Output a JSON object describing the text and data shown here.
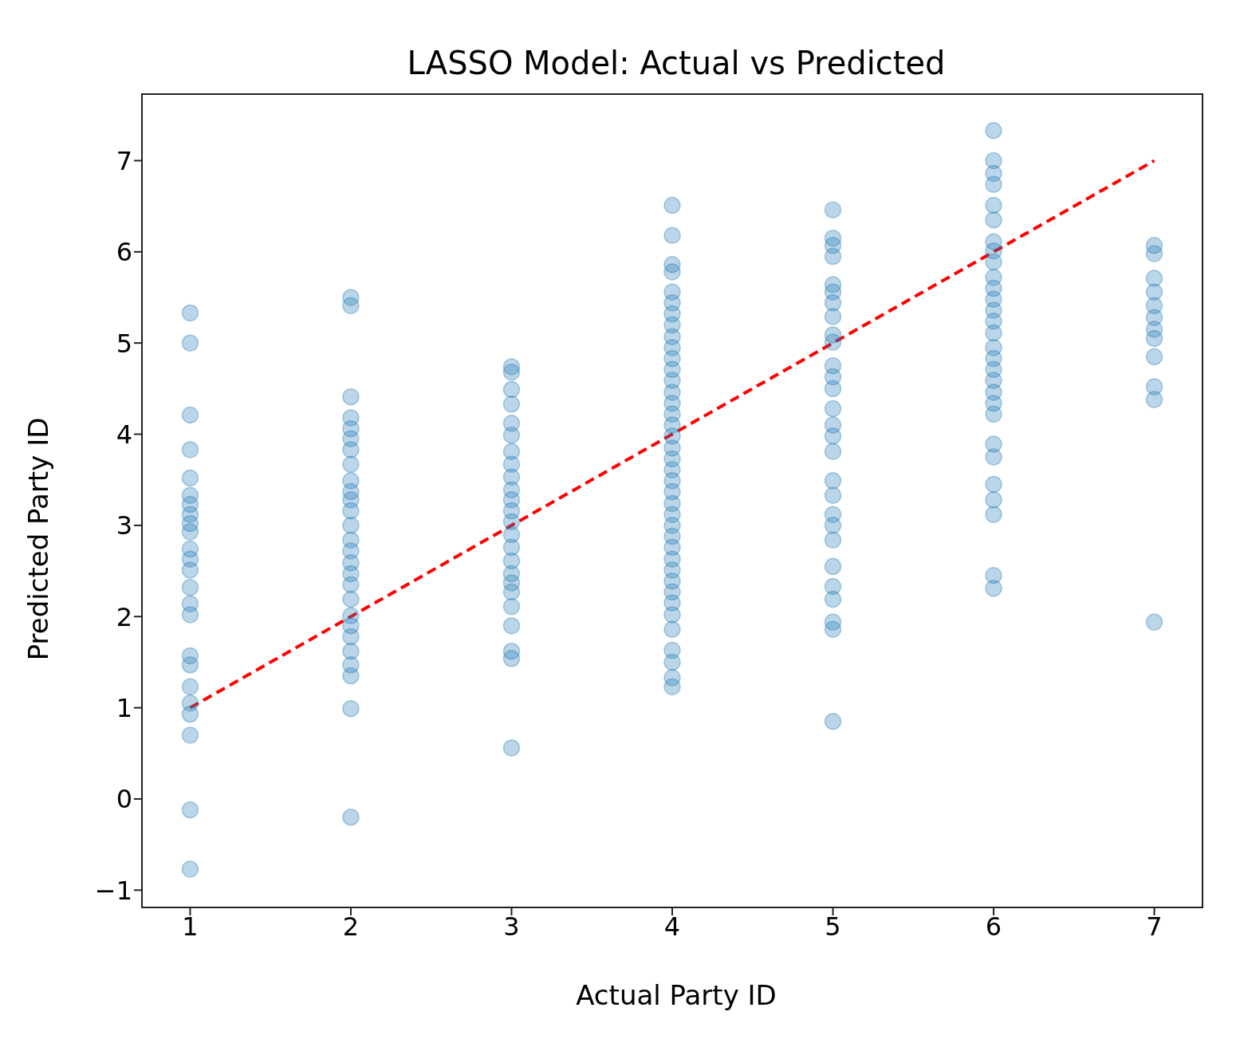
{
  "chart_data": {
    "type": "scatter",
    "title": "LASSO Model: Actual vs Predicted",
    "xlabel": "Actual Party ID",
    "ylabel": "Predicted Party ID",
    "xlim": [
      0.7,
      7.3
    ],
    "xticks": [
      1,
      2,
      3,
      4,
      5,
      6,
      7
    ],
    "ylim": [
      -1.19,
      7.73
    ],
    "yticks": [
      {
        "value": -1,
        "label": "−1"
      },
      0,
      1,
      2,
      3,
      4,
      5,
      6,
      7
    ],
    "marker": "circle",
    "series": [
      {
        "color": "#1f77b4",
        "x": [
          1,
          1,
          1,
          1,
          1,
          1,
          1,
          1,
          1,
          1,
          1,
          1,
          1,
          1,
          1,
          1,
          1,
          1,
          1,
          1,
          1,
          1,
          1,
          1,
          2,
          2,
          2,
          2,
          2,
          2,
          2,
          2,
          2,
          2,
          2,
          2,
          2,
          2,
          2,
          2,
          2,
          2,
          2,
          2,
          2,
          2,
          2,
          2,
          2,
          2,
          2,
          3,
          3,
          3,
          3,
          3,
          3,
          3,
          3,
          3,
          3,
          3,
          3,
          3,
          3,
          3,
          3,
          3,
          3,
          3,
          3,
          3,
          3,
          3,
          3,
          4,
          4,
          4,
          4,
          4,
          4,
          4,
          4,
          4,
          4,
          4,
          4,
          4,
          4,
          4,
          4,
          4,
          4,
          4,
          4,
          4,
          4,
          4,
          4,
          4,
          4,
          4,
          4,
          4,
          4,
          4,
          4,
          4,
          4,
          4,
          4,
          4,
          4,
          4,
          5,
          5,
          5,
          5,
          5,
          5,
          5,
          5,
          5,
          5,
          5,
          5,
          5,
          5,
          5,
          5,
          5,
          5,
          5,
          5,
          5,
          5,
          5,
          5,
          5,
          5,
          5,
          5,
          6,
          6,
          6,
          6,
          6,
          6,
          6,
          6,
          6,
          6,
          6,
          6,
          6,
          6,
          6,
          6,
          6,
          6,
          6,
          6,
          6,
          6,
          6,
          6,
          6,
          6,
          6,
          6,
          6,
          7,
          7,
          7,
          7,
          7,
          7,
          7,
          7,
          7,
          7,
          7,
          7
        ],
        "values": [
          5.33,
          5.0,
          4.21,
          3.83,
          3.52,
          3.33,
          3.23,
          3.12,
          3.02,
          2.93,
          2.74,
          2.63,
          2.51,
          2.32,
          2.14,
          2.02,
          1.57,
          1.47,
          1.23,
          1.05,
          0.93,
          0.7,
          -0.12,
          -0.77,
          5.5,
          5.41,
          4.41,
          4.18,
          4.06,
          3.95,
          3.83,
          3.67,
          3.49,
          3.37,
          3.28,
          3.16,
          3.0,
          2.84,
          2.72,
          2.59,
          2.47,
          2.35,
          2.19,
          2.01,
          1.9,
          1.78,
          1.62,
          1.47,
          1.35,
          0.99,
          -0.2,
          4.74,
          4.68,
          4.49,
          4.33,
          4.12,
          3.99,
          3.81,
          3.67,
          3.53,
          3.39,
          3.28,
          3.16,
          3.04,
          2.9,
          2.76,
          2.61,
          2.47,
          2.37,
          2.27,
          2.11,
          1.9,
          1.62,
          1.54,
          0.56,
          6.51,
          6.18,
          5.86,
          5.78,
          5.56,
          5.44,
          5.32,
          5.2,
          5.07,
          4.95,
          4.83,
          4.71,
          4.59,
          4.46,
          4.34,
          4.22,
          4.1,
          3.98,
          3.85,
          3.73,
          3.61,
          3.49,
          3.37,
          3.24,
          3.12,
          3.0,
          2.88,
          2.76,
          2.63,
          2.51,
          2.39,
          2.27,
          2.15,
          2.02,
          1.86,
          1.63,
          1.5,
          1.33,
          1.23,
          6.46,
          6.15,
          6.07,
          5.95,
          5.64,
          5.56,
          5.44,
          5.29,
          5.09,
          5.01,
          4.75,
          4.63,
          4.5,
          4.28,
          4.1,
          3.98,
          3.81,
          3.49,
          3.33,
          3.12,
          3.0,
          2.84,
          2.55,
          2.33,
          2.19,
          1.94,
          1.86,
          0.85,
          7.33,
          7.0,
          6.86,
          6.74,
          6.51,
          6.35,
          6.11,
          6.01,
          5.89,
          5.72,
          5.6,
          5.48,
          5.36,
          5.24,
          5.11,
          4.95,
          4.83,
          4.71,
          4.59,
          4.46,
          4.34,
          4.22,
          3.89,
          3.75,
          3.45,
          3.28,
          3.12,
          2.45,
          2.31,
          6.07,
          5.98,
          5.71,
          5.56,
          5.41,
          5.28,
          5.15,
          5.05,
          4.85,
          4.52,
          4.38,
          1.94
        ]
      },
      {
        "type": "line",
        "color": "#ff0000",
        "line_style": "dashed",
        "marker": "none",
        "x": [
          1,
          7
        ],
        "values": [
          1,
          7
        ]
      }
    ]
  }
}
